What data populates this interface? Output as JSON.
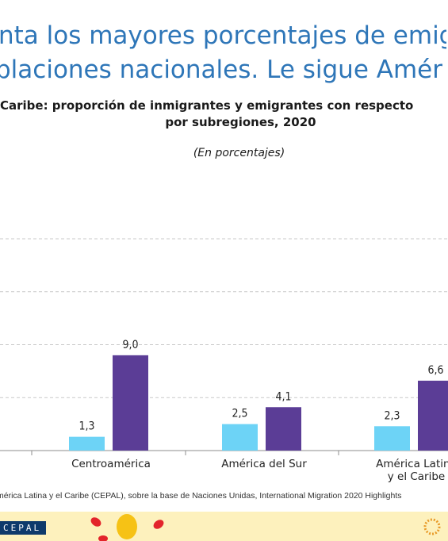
{
  "header": {
    "line1": "nta los mayores porcentajes de emig",
    "line2": "blaciones nacionales. Le sigue Améri",
    "subtitle1": "Caribe: proporción de inmigrantes y emigrantes con respecto",
    "subtitle2": "por subregiones, 2020",
    "unit": "(En porcentajes)"
  },
  "chart_data": {
    "type": "bar",
    "categories": [
      "Centroamérica",
      "América del Sur",
      "América Latina y el Caribe"
    ],
    "category_lines": [
      [
        "Centroamérica"
      ],
      [
        "América del Sur"
      ],
      [
        "América Latina",
        "y el Caribe"
      ]
    ],
    "series": [
      {
        "values": [
          1.3,
          2.5,
          2.3
        ],
        "color": "#6dd3f6"
      },
      {
        "values": [
          9.0,
          4.1,
          6.6
        ],
        "color": "#5b3d96"
      }
    ],
    "data_labels": [
      [
        "1,3",
        "2,5",
        "2,3"
      ],
      [
        "9,0",
        "4,1",
        "6,6"
      ]
    ],
    "ylim": [
      0,
      20
    ],
    "grid": true
  },
  "footer": {
    "source": "mérica Latina y el Caribe (CEPAL), sobre la base de Naciones Unidas, International Migration 2020 Highlights",
    "logo_text": "CEPAL"
  }
}
